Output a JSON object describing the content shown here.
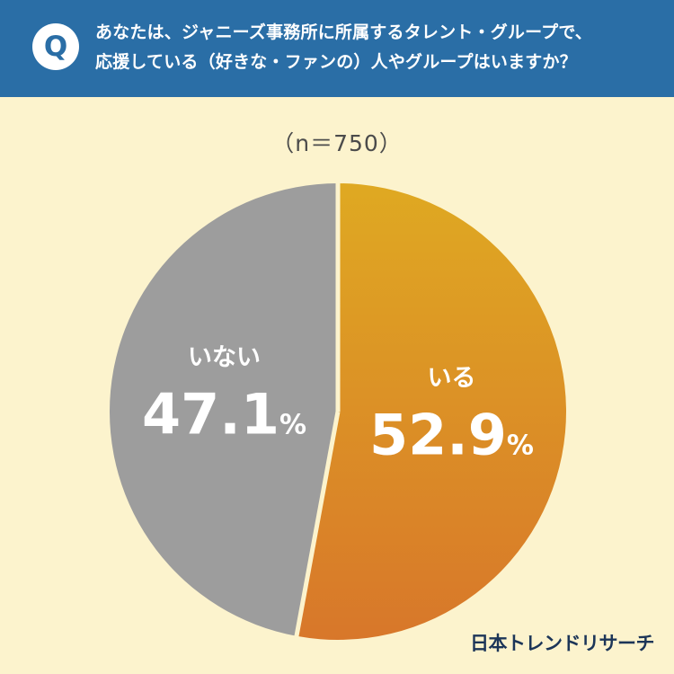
{
  "header": {
    "badge": "Q",
    "question_line1": "あなたは、ジャニーズ事務所に所属するタレント・グループで、",
    "question_line2": "応援している（好きな・ファンの）人やグループはいますか？"
  },
  "sample_label": "（n＝750）",
  "brand": "日本トレンドリサーチ",
  "colors": {
    "header_bg": "#2a6ea6",
    "page_bg": "#fcf3cd",
    "slice_yes_top": "#dfa922",
    "slice_yes_bottom": "#d8772a",
    "slice_no": "#9d9d9d",
    "separator": "#fcf3cd",
    "brand_text": "#1c3558"
  },
  "chart_data": {
    "type": "pie",
    "title": "",
    "slices": [
      {
        "label": "いる",
        "value": 52.9,
        "display_value": "52.9",
        "unit": "%"
      },
      {
        "label": "いない",
        "value": 47.1,
        "display_value": "47.1",
        "unit": "%"
      }
    ],
    "start_angle": "12 o'clock",
    "direction": "clockwise"
  }
}
